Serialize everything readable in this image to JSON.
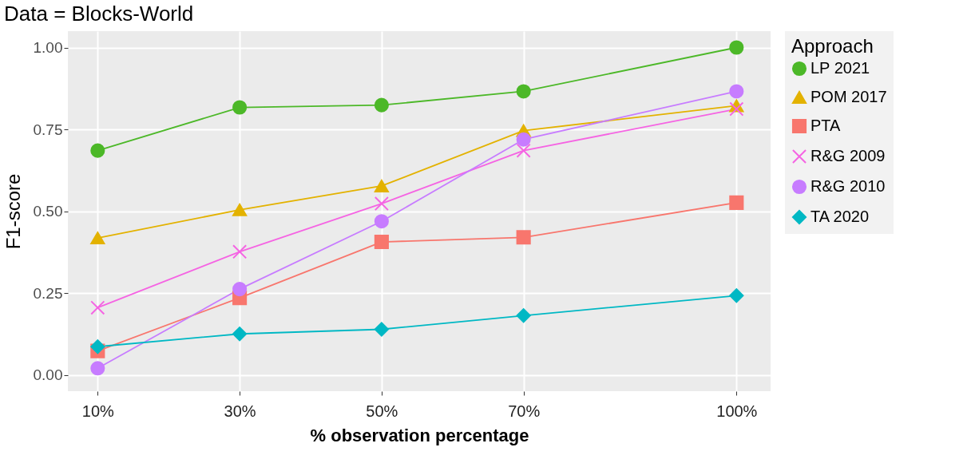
{
  "chart_data": {
    "type": "line",
    "title": "Data = Blocks-World",
    "xlabel": "% observation percentage",
    "ylabel": "F1-score",
    "legend_title": "Approach",
    "x": [
      10,
      30,
      50,
      70,
      100
    ],
    "series": [
      {
        "name": "LP 2021",
        "color": "#4cb828",
        "marker": "circle",
        "values": [
          0.685,
          0.817,
          0.824,
          0.866,
          1.0
        ]
      },
      {
        "name": "POM 2017",
        "color": "#e3b200",
        "marker": "triangle",
        "values": [
          0.418,
          0.504,
          0.577,
          0.746,
          0.822
        ]
      },
      {
        "name": "PTA",
        "color": "#f8766d",
        "marker": "square",
        "values": [
          0.073,
          0.235,
          0.406,
          0.42,
          0.526
        ]
      },
      {
        "name": "R&G 2009",
        "color": "#f564e3",
        "marker": "cross",
        "values": [
          0.205,
          0.376,
          0.523,
          0.685,
          0.812
        ]
      },
      {
        "name": "R&G 2010",
        "color": "#c77cff",
        "marker": "circle",
        "values": [
          0.02,
          0.262,
          0.469,
          0.719,
          0.866
        ]
      },
      {
        "name": "TA 2020",
        "color": "#00b8c4",
        "marker": "diamond",
        "values": [
          0.086,
          0.125,
          0.139,
          0.181,
          0.242
        ]
      }
    ],
    "xlim": [
      5.8,
      104.8
    ],
    "xticks": [
      {
        "value": 10,
        "label": "10%"
      },
      {
        "value": 30,
        "label": "30%"
      },
      {
        "value": 50,
        "label": "50%"
      },
      {
        "value": 70,
        "label": "70%"
      },
      {
        "value": 100,
        "label": "100%"
      }
    ],
    "ylim": [
      -0.05,
      1.05
    ],
    "yticks": [
      {
        "value": 0,
        "label": "0.00"
      },
      {
        "value": 0.25,
        "label": "0.25"
      },
      {
        "value": 0.5,
        "label": "0.50"
      },
      {
        "value": 0.75,
        "label": "0.75"
      },
      {
        "value": 1,
        "label": "1.00"
      }
    ],
    "grid": true,
    "legend": "right"
  }
}
